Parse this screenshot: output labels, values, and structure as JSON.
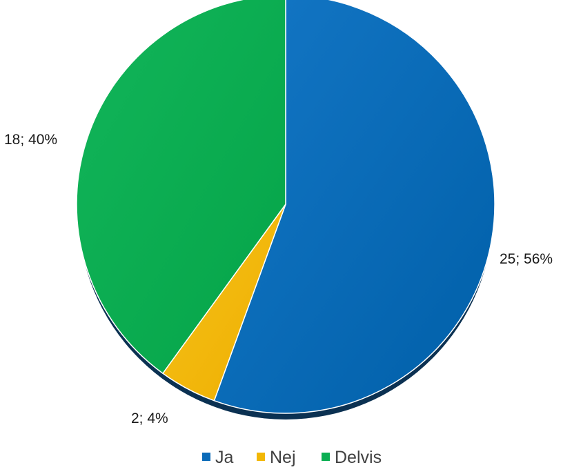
{
  "chart_data": {
    "type": "pie",
    "title": "",
    "categories": [
      "Ja",
      "Nej",
      "Delvis"
    ],
    "values": [
      25,
      2,
      18
    ],
    "percentages": [
      56,
      4,
      40
    ],
    "data_labels": [
      "25; 56%",
      "2; 4%",
      "18; 40%"
    ],
    "colors": [
      "#0a6ab8",
      "#f2b705",
      "#0aae52"
    ],
    "legend": {
      "position": "bottom",
      "entries": [
        "Ja",
        "Nej",
        "Delvis"
      ]
    },
    "start_angle_deg": 0,
    "direction": "clockwise"
  }
}
